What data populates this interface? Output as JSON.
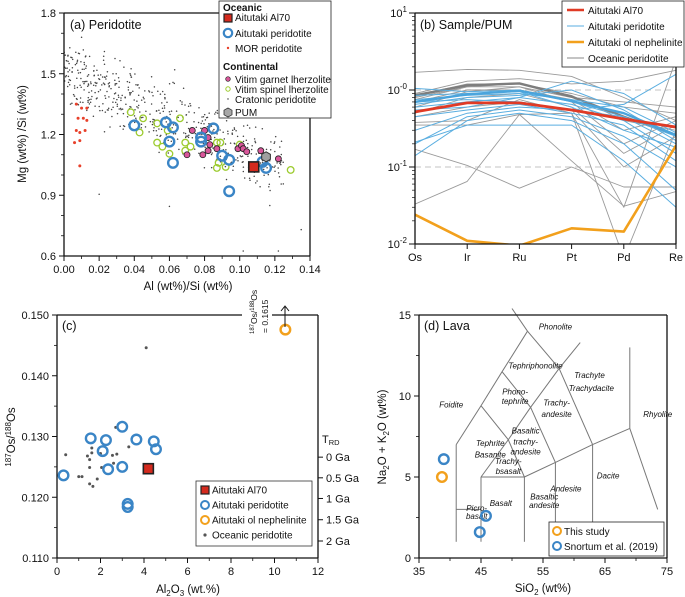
{
  "chart_data": [
    {
      "id": "a",
      "type": "scatter",
      "title": "(a) Peridotite",
      "xlabel": "Al (wt%)/Si (wt%)",
      "ylabel": "Mg (wt%) /Si (wt%)",
      "xlim": [
        0,
        0.14
      ],
      "ylim": [
        0.6,
        1.8
      ],
      "xticks": [
        "0.00",
        "0.02",
        "0.04",
        "0.06",
        "0.08",
        "0.10",
        "0.12",
        "0.14"
      ],
      "yticks": [
        "0.6",
        "0.9",
        "1.2",
        "1.5",
        "1.8"
      ],
      "legend": {
        "placement": "top-right",
        "groups": [
          {
            "heading": "Oceanic",
            "entries": [
              "Aitutaki Al70",
              "Aitutaki peridotite",
              "MOR peridotite"
            ]
          },
          {
            "heading": "Continental",
            "entries": [
              "Vitim garnet lherzolite",
              "Vitim spinel lherzolite",
              "Cratonic peridotite",
              "PUM"
            ]
          }
        ]
      },
      "series": [
        {
          "name": "Aitutaki Al70",
          "color": "#d42a1e",
          "marker": "square",
          "points": [
            [
              0.108,
              1.04
            ]
          ]
        },
        {
          "name": "Aitutaki peridotite",
          "color": "#3a85c6",
          "marker": "ring",
          "points": [
            [
              0.04,
              1.245
            ],
            [
              0.058,
              1.26
            ],
            [
              0.062,
              1.235
            ],
            [
              0.06,
              1.165
            ],
            [
              0.062,
              1.06
            ],
            [
              0.078,
              1.185
            ],
            [
              0.078,
              1.165
            ],
            [
              0.085,
              1.23
            ],
            [
              0.09,
              1.095
            ],
            [
              0.094,
              1.075
            ],
            [
              0.094,
              0.92
            ],
            [
              0.113,
              1.065
            ],
            [
              0.115,
              1.035
            ]
          ]
        },
        {
          "name": "MOR peridotite",
          "color": "#e8402a",
          "marker": "dot",
          "points": [
            [
              0.007,
              1.35
            ],
            [
              0.01,
              1.33
            ],
            [
              0.013,
              1.33
            ],
            [
              0.008,
              1.28
            ],
            [
              0.011,
              1.28
            ],
            [
              0.013,
              1.27
            ],
            [
              0.007,
              1.22
            ],
            [
              0.009,
              1.21
            ],
            [
              0.012,
              1.22
            ],
            [
              0.006,
              1.16
            ],
            [
              0.009,
              1.17
            ],
            [
              0.009,
              1.045
            ]
          ]
        },
        {
          "name": "Vitim garnet lherzolite",
          "color": "#d9569a",
          "marker": "filled-circle",
          "points": [
            [
              0.073,
              1.22
            ],
            [
              0.08,
              1.22
            ],
            [
              0.082,
              1.185
            ],
            [
              0.083,
              1.15
            ],
            [
              0.082,
              1.12
            ],
            [
              0.087,
              1.13
            ],
            [
              0.07,
              1.1
            ],
            [
              0.079,
              1.1
            ],
            [
              0.099,
              1.13
            ],
            [
              0.101,
              1.145
            ],
            [
              0.102,
              1.13
            ],
            [
              0.104,
              1.115
            ],
            [
              0.112,
              1.12
            ],
            [
              0.122,
              1.08
            ]
          ]
        },
        {
          "name": "Vitim spinel lherzolite",
          "color": "#9ccb2e",
          "marker": "ring-small",
          "points": [
            [
              0.038,
              1.31
            ],
            [
              0.045,
              1.28
            ],
            [
              0.043,
              1.21
            ],
            [
              0.053,
              1.255
            ],
            [
              0.053,
              1.16
            ],
            [
              0.056,
              1.14
            ],
            [
              0.059,
              1.22
            ],
            [
              0.06,
              1.105
            ],
            [
              0.066,
              1.28
            ],
            [
              0.069,
              1.16
            ],
            [
              0.072,
              1.14
            ],
            [
              0.069,
              1.12
            ],
            [
              0.087,
              1.16
            ],
            [
              0.089,
              1.16
            ],
            [
              0.088,
              1.06
            ],
            [
              0.087,
              1.035
            ],
            [
              0.092,
              1.04
            ],
            [
              0.1,
              1.15
            ],
            [
              0.129,
              1.025
            ]
          ]
        },
        {
          "name": "PUM",
          "color": "#a0a0a0",
          "marker": "hexagon",
          "points": [
            [
              0.115,
              1.09
            ]
          ]
        }
      ],
      "cratonic_cloud": {
        "name": "Cratonic peridotite",
        "color": "#444444",
        "marker": "tiny-dot",
        "trend": "dense cloud from (0.0,1.55) to (0.12,1.05)",
        "outliers": [
          [
            0.01,
            1.68
          ],
          [
            0.023,
            1.61
          ],
          [
            0.063,
            1.52
          ],
          [
            0.02,
            0.905
          ],
          [
            0.06,
            0.845
          ],
          [
            0.102,
            0.625
          ],
          [
            0.122,
            0.625
          ],
          [
            0.135,
            0.73
          ]
        ]
      }
    },
    {
      "id": "b",
      "type": "line",
      "title": "(b) Sample/PUM",
      "xlabel": "",
      "ylabel": "",
      "yscale": "log",
      "ylim": [
        0.01,
        10
      ],
      "categories": [
        "Os",
        "Ir",
        "Ru",
        "Pt",
        "Pd",
        "Re"
      ],
      "yticks": [
        "10-2",
        "10-1",
        "10-0",
        "101"
      ],
      "reference_lines": [
        0.1,
        1.0
      ],
      "legend": {
        "placement": "top-right",
        "entries": [
          "Aitutaki Al70",
          "Aitutaki peridotite",
          "Aitutaki ol nephelinite",
          "Oceanic peridotite"
        ]
      },
      "series": [
        {
          "name": "Aitutaki Al70",
          "color": "#e03a25",
          "width": "thick",
          "values": [
            0.52,
            0.68,
            0.68,
            0.55,
            0.42,
            0.33
          ]
        },
        {
          "name": "Aitutaki ol nephelinite",
          "color": "#f2a01c",
          "width": "thick",
          "values": [
            0.024,
            0.011,
            0.0095,
            0.016,
            0.0145,
            0.19
          ]
        },
        {
          "name": "Aitutaki peridotite",
          "color": "#5aaee0",
          "width": "thin",
          "lines": [
            [
              1.05,
              0.95,
              1.0,
              0.7,
              0.45,
              0.25
            ],
            [
              0.85,
              0.9,
              0.95,
              0.6,
              0.3,
              0.18
            ],
            [
              0.75,
              0.85,
              0.9,
              0.75,
              0.6,
              0.28
            ],
            [
              0.65,
              0.8,
              0.85,
              1.0,
              0.55,
              0.22
            ],
            [
              0.55,
              0.6,
              0.8,
              0.65,
              0.4,
              0.15
            ],
            [
              0.45,
              0.55,
              0.65,
              0.5,
              0.35,
              0.12
            ],
            [
              0.3,
              0.5,
              0.6,
              0.55,
              0.45,
              0.2
            ],
            [
              0.2,
              0.45,
              0.55,
              0.45,
              0.25,
              0.1
            ],
            [
              0.14,
              0.4,
              0.5,
              0.4,
              0.2,
              0.05
            ],
            [
              0.21,
              0.35,
              0.35,
              0.35,
              0.12,
              0.03
            ],
            [
              0.6,
              0.7,
              0.8,
              1.3,
              0.9,
              0.35
            ],
            [
              0.7,
              0.75,
              0.7,
              0.55,
              0.65,
              1.6
            ]
          ]
        },
        {
          "name": "Aitutaki peridotite mean",
          "color": "#5aaee0",
          "width": "thick",
          "values": [
            0.7,
            0.88,
            0.98,
            0.72,
            0.5,
            0.26
          ]
        },
        {
          "name": "Oceanic peridotite",
          "color": "#999999",
          "width": "thin",
          "lines": [
            [
              1.7,
              1.85,
              1.8,
              1.5,
              0.8,
              0.4
            ],
            [
              0.9,
              1.3,
              1.4,
              1.2,
              1.3,
              1.8
            ],
            [
              0.85,
              1.2,
              1.2,
              0.9,
              0.6,
              0.5
            ],
            [
              0.8,
              1.1,
              1.1,
              0.8,
              0.7,
              0.6
            ],
            [
              0.7,
              1.0,
              1.0,
              0.75,
              0.3,
              0.45
            ],
            [
              0.6,
              0.95,
              1.1,
              0.7,
              0.2,
              0.4
            ],
            [
              0.5,
              0.8,
              0.9,
              0.6,
              0.15,
              0.35
            ],
            [
              0.45,
              0.6,
              0.7,
              0.55,
              0.1,
              0.25
            ],
            [
              0.38,
              0.4,
              0.75,
              0.5,
              0.03,
              2.5
            ],
            [
              0.35,
              0.35,
              0.48,
              0.5,
              0.0065,
              0.3
            ],
            [
              0.17,
              0.105,
              0.053,
              0.1,
              0.055,
              0.055
            ],
            [
              0.033,
              0.065,
              0.48,
              0.12,
              0.031,
              0.048
            ],
            [
              0.75,
              1.1,
              1.2,
              0.85,
              0.4,
              0.3
            ]
          ]
        },
        {
          "name": "Oceanic peridotite mean",
          "color": "#808080",
          "width": "thick",
          "values": [
            0.85,
            1.15,
            1.22,
            0.82,
            0.45,
            0.26
          ]
        }
      ]
    },
    {
      "id": "c",
      "type": "scatter",
      "title": "(c)",
      "xlabel": "Al2O3 (wt.%)",
      "ylabel": "187Os/188Os",
      "xlim": [
        0,
        12
      ],
      "ylim": [
        0.11,
        0.15
      ],
      "xticks": [
        "0",
        "2",
        "4",
        "6",
        "8",
        "10",
        "12"
      ],
      "yticks": [
        "0.110",
        "0.120",
        "0.130",
        "0.140",
        "0.150"
      ],
      "secondary_axis": {
        "label": "TRD",
        "ticks": [
          {
            "label": "0 Ga",
            "value": 0.1266
          },
          {
            "label": "0.5 Ga",
            "value": 0.1232
          },
          {
            "label": "1 Ga",
            "value": 0.1198
          },
          {
            "label": "1.5 Ga",
            "value": 0.1163
          },
          {
            "label": "2 Ga",
            "value": 0.1128
          }
        ]
      },
      "annotation": {
        "text": "187Os/188Os = 0.1615",
        "arrow": "up",
        "x": 10.5
      },
      "legend": {
        "placement": "bottom-right",
        "entries": [
          "Aitutaki Al70",
          "Aitutaki peridotite",
          "Aitutaki ol nephelinite",
          "Oceanic peridotite"
        ]
      },
      "series": [
        {
          "name": "Aitutaki Al70",
          "color": "#d42a1e",
          "marker": "square",
          "points": [
            [
              4.2,
              0.1247
            ]
          ]
        },
        {
          "name": "Aitutaki peridotite",
          "color": "#3a85c6",
          "marker": "ring",
          "points": [
            [
              0.3,
              0.1236
            ],
            [
              1.55,
              0.1297
            ],
            [
              2.25,
              0.1294
            ],
            [
              2.1,
              0.1276
            ],
            [
              2.35,
              0.1246
            ],
            [
              3.0,
              0.1316
            ],
            [
              3.0,
              0.125
            ],
            [
              3.65,
              0.1295
            ],
            [
              4.45,
              0.1292
            ],
            [
              4.55,
              0.1279
            ],
            [
              3.25,
              0.1189
            ],
            [
              3.25,
              0.1184
            ]
          ]
        },
        {
          "name": "Aitutaki ol nephelinite",
          "color": "#f2a01c",
          "marker": "ring",
          "points": [
            [
              10.5,
              0.1476
            ]
          ]
        },
        {
          "name": "Oceanic peridotite",
          "color": "#555555",
          "marker": "dot",
          "points": [
            [
              0.4,
              0.127
            ],
            [
              1.0,
              0.1234
            ],
            [
              1.15,
              0.1234
            ],
            [
              1.4,
              0.1268
            ],
            [
              1.5,
              0.1262
            ],
            [
              1.5,
              0.1249
            ],
            [
              1.6,
              0.1281
            ],
            [
              1.6,
              0.1273
            ],
            [
              1.5,
              0.1222
            ],
            [
              1.65,
              0.1218
            ],
            [
              1.85,
              0.123
            ],
            [
              2.0,
              0.1272
            ],
            [
              2.05,
              0.1249
            ],
            [
              2.55,
              0.1269
            ],
            [
              2.6,
              0.1256
            ],
            [
              2.75,
              0.1271
            ],
            [
              2.7,
              0.1315
            ],
            [
              3.3,
              0.1283
            ],
            [
              4.1,
              0.1446
            ]
          ]
        }
      ]
    },
    {
      "id": "d",
      "type": "scatter",
      "title": "(d) Lava",
      "xlabel": "SiO2 (wt%)",
      "ylabel": "Na2O + K2O (wt%)",
      "xlim": [
        35,
        75
      ],
      "ylim": [
        0,
        15
      ],
      "xticks": [
        "35",
        "45",
        "55",
        "65",
        "75"
      ],
      "yticks": [
        "0",
        "5",
        "10",
        "15"
      ],
      "tas_fields": [
        "Phonolite",
        "Tephriphonolite",
        "Trachyte",
        "Trachydacite",
        "Phono-",
        "tephrite",
        "Foidite",
        "Trachy-",
        "andesite",
        "Rhyolite",
        "Basaltic",
        "trachy-",
        "andesite",
        "Tephrite",
        "Basanite",
        "Trachy-",
        "bsasalt",
        "Dacite",
        "Andesite",
        "Basaltic",
        "andesite",
        "Basalt",
        "Picro-",
        "basalt"
      ],
      "legend": {
        "placement": "bottom-right",
        "entries": [
          "This study",
          "Snortum et al. (2019)"
        ]
      },
      "series": [
        {
          "name": "This study",
          "color": "#f2a01c",
          "marker": "ring",
          "points": [
            [
              38.7,
              5.0
            ]
          ]
        },
        {
          "name": "Snortum et al. (2019)",
          "color": "#3a85c6",
          "marker": "ring",
          "points": [
            [
              39.0,
              6.1
            ],
            [
              45.8,
              2.6
            ],
            [
              44.8,
              1.6
            ]
          ]
        }
      ]
    }
  ]
}
